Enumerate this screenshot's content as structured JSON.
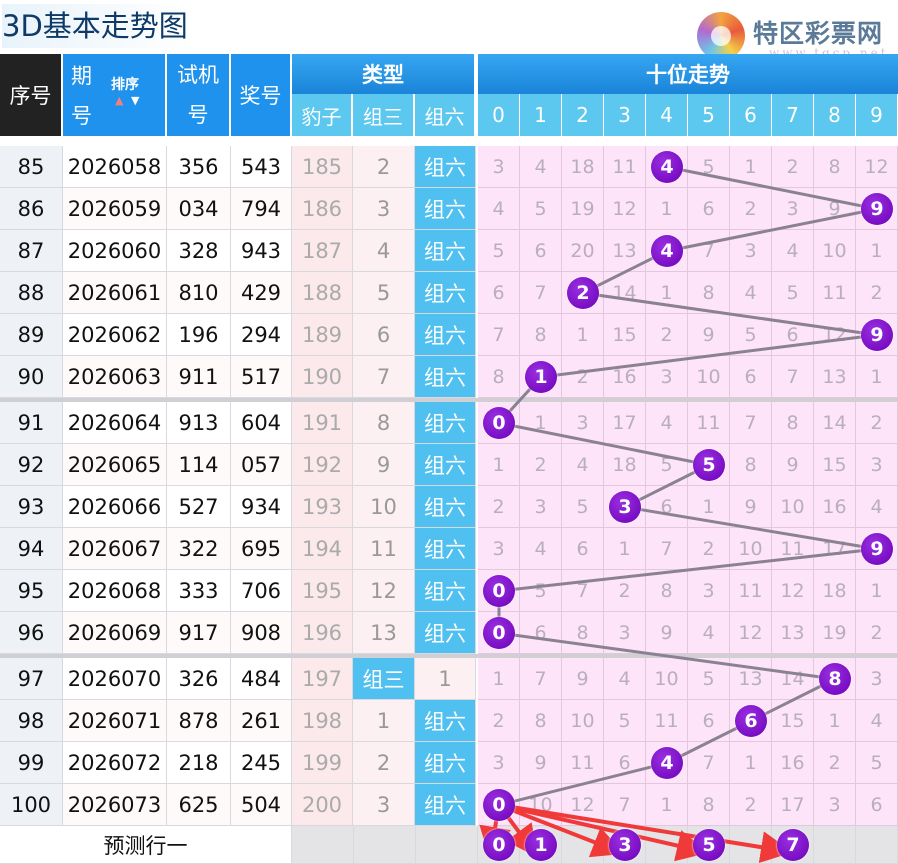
{
  "title": "3D基本走势图",
  "logo": {
    "name": "特区彩票网",
    "url": "www.tqcp.net"
  },
  "header": {
    "seq": "序号",
    "issue_top": "期",
    "issue_bottom": "号",
    "sort": "排序",
    "test_top": "试机",
    "test_bottom": "号",
    "prize": "奖号",
    "type": "类型",
    "type_cols": [
      "豹子",
      "组三",
      "组六"
    ],
    "trend": "十位走势",
    "digits": [
      "0",
      "1",
      "2",
      "3",
      "4",
      "5",
      "6",
      "7",
      "8",
      "9"
    ]
  },
  "colors": {
    "header": "#1e92ec",
    "subheader": "#5cc7ef",
    "ball": "#7a0cc8",
    "grid": "#fde4f8",
    "arrow": "#f03a3a"
  },
  "rows": [
    {
      "seq": "85",
      "issue": "2026058",
      "test": "356",
      "prize": "543",
      "baozi": "185",
      "zusan": "2",
      "zuliu": "组六",
      "hit": 4,
      "miss": [
        "3",
        "4",
        "18",
        "11",
        "4",
        "5",
        "1",
        "2",
        "8",
        "12"
      ]
    },
    {
      "seq": "86",
      "issue": "2026059",
      "test": "034",
      "prize": "794",
      "baozi": "186",
      "zusan": "3",
      "zuliu": "组六",
      "hit": 9,
      "miss": [
        "4",
        "5",
        "19",
        "12",
        "1",
        "6",
        "2",
        "3",
        "9",
        "9"
      ]
    },
    {
      "seq": "87",
      "issue": "2026060",
      "test": "328",
      "prize": "943",
      "baozi": "187",
      "zusan": "4",
      "zuliu": "组六",
      "hit": 4,
      "miss": [
        "5",
        "6",
        "20",
        "13",
        "4",
        "7",
        "3",
        "4",
        "10",
        "1"
      ]
    },
    {
      "seq": "88",
      "issue": "2026061",
      "test": "810",
      "prize": "429",
      "baozi": "188",
      "zusan": "5",
      "zuliu": "组六",
      "hit": 2,
      "miss": [
        "6",
        "7",
        "2",
        "14",
        "1",
        "8",
        "4",
        "5",
        "11",
        "2"
      ]
    },
    {
      "seq": "89",
      "issue": "2026062",
      "test": "196",
      "prize": "294",
      "baozi": "189",
      "zusan": "6",
      "zuliu": "组六",
      "hit": 9,
      "miss": [
        "7",
        "8",
        "1",
        "15",
        "2",
        "9",
        "5",
        "6",
        "12",
        "9"
      ]
    },
    {
      "seq": "90",
      "issue": "2026063",
      "test": "911",
      "prize": "517",
      "baozi": "190",
      "zusan": "7",
      "zuliu": "组六",
      "hit": 1,
      "miss": [
        "8",
        "1",
        "2",
        "16",
        "3",
        "10",
        "6",
        "7",
        "13",
        "1"
      ]
    },
    {
      "seq": "91",
      "issue": "2026064",
      "test": "913",
      "prize": "604",
      "baozi": "191",
      "zusan": "8",
      "zuliu": "组六",
      "hit": 0,
      "miss": [
        "0",
        "1",
        "3",
        "17",
        "4",
        "11",
        "7",
        "8",
        "14",
        "2"
      ]
    },
    {
      "seq": "92",
      "issue": "2026065",
      "test": "114",
      "prize": "057",
      "baozi": "192",
      "zusan": "9",
      "zuliu": "组六",
      "hit": 5,
      "miss": [
        "1",
        "2",
        "4",
        "18",
        "5",
        "5",
        "8",
        "9",
        "15",
        "3"
      ]
    },
    {
      "seq": "93",
      "issue": "2026066",
      "test": "527",
      "prize": "934",
      "baozi": "193",
      "zusan": "10",
      "zuliu": "组六",
      "hit": 3,
      "miss": [
        "2",
        "3",
        "5",
        "3",
        "6",
        "1",
        "9",
        "10",
        "16",
        "4"
      ]
    },
    {
      "seq": "94",
      "issue": "2026067",
      "test": "322",
      "prize": "695",
      "baozi": "194",
      "zusan": "11",
      "zuliu": "组六",
      "hit": 9,
      "miss": [
        "3",
        "4",
        "6",
        "1",
        "7",
        "2",
        "10",
        "11",
        "17",
        "9"
      ]
    },
    {
      "seq": "95",
      "issue": "2026068",
      "test": "333",
      "prize": "706",
      "baozi": "195",
      "zusan": "12",
      "zuliu": "组六",
      "hit": 0,
      "miss": [
        "0",
        "5",
        "7",
        "2",
        "8",
        "3",
        "11",
        "12",
        "18",
        "1"
      ]
    },
    {
      "seq": "96",
      "issue": "2026069",
      "test": "917",
      "prize": "908",
      "baozi": "196",
      "zusan": "13",
      "zuliu": "组六",
      "hit": 0,
      "miss": [
        "0",
        "6",
        "8",
        "3",
        "9",
        "4",
        "12",
        "13",
        "19",
        "2"
      ]
    },
    {
      "seq": "97",
      "issue": "2026070",
      "test": "326",
      "prize": "484",
      "baozi": "197",
      "zusan": "组三",
      "zuliu": "1",
      "hit": 8,
      "miss": [
        "1",
        "7",
        "9",
        "4",
        "10",
        "5",
        "13",
        "14",
        "8",
        "3"
      ]
    },
    {
      "seq": "98",
      "issue": "2026071",
      "test": "878",
      "prize": "261",
      "baozi": "198",
      "zusan": "1",
      "zuliu": "组六",
      "hit": 6,
      "miss": [
        "2",
        "8",
        "10",
        "5",
        "11",
        "6",
        "6",
        "15",
        "1",
        "4"
      ]
    },
    {
      "seq": "99",
      "issue": "2026072",
      "test": "218",
      "prize": "245",
      "baozi": "199",
      "zusan": "2",
      "zuliu": "组六",
      "hit": 4,
      "miss": [
        "3",
        "9",
        "11",
        "6",
        "4",
        "7",
        "1",
        "16",
        "2",
        "5"
      ]
    },
    {
      "seq": "100",
      "issue": "2026073",
      "test": "625",
      "prize": "504",
      "baozi": "200",
      "zusan": "3",
      "zuliu": "组六",
      "hit": 0,
      "miss": [
        "0",
        "10",
        "12",
        "7",
        "1",
        "8",
        "2",
        "17",
        "3",
        "6"
      ]
    }
  ],
  "prediction": {
    "label": "预测行一",
    "picks": [
      "0",
      "1",
      "3",
      "5",
      "7"
    ]
  }
}
